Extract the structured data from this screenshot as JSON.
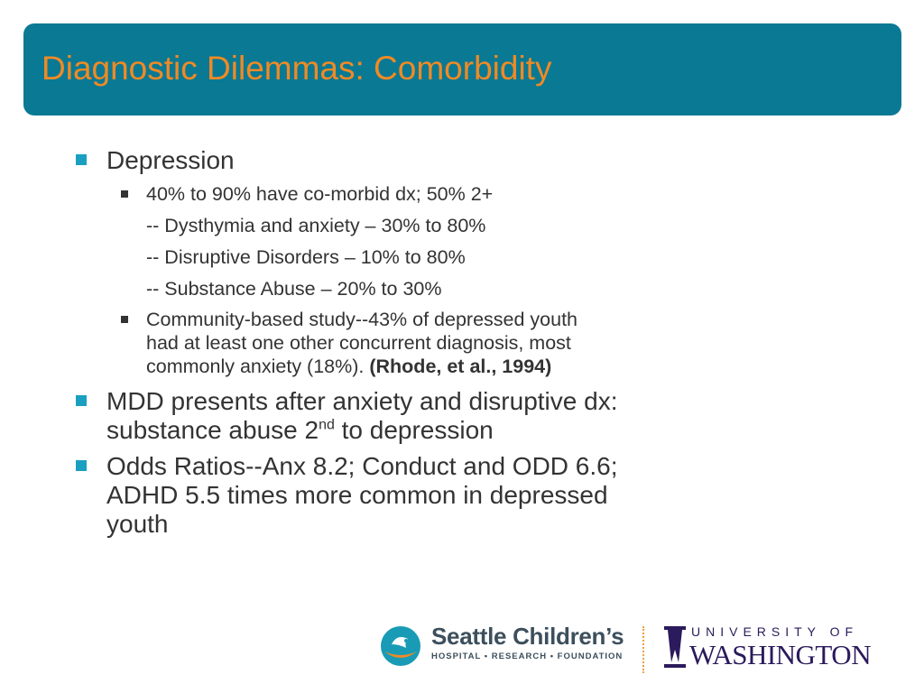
{
  "slide": {
    "title": "Diagnostic Dilemmas: Comorbidity"
  },
  "bullets": {
    "depression": {
      "label": "Depression",
      "sub1": {
        "text": "40% to 90% have co-morbid dx; 50% 2+",
        "lines": [
          "-- Dysthymia and anxiety – 30% to 80%",
          "-- Disruptive Disorders – 10% to 80%",
          "-- Substance Abuse – 20% to 30%"
        ]
      },
      "sub2": {
        "line1": "Community-based study--43% of depressed youth",
        "line2": "had at least one other concurrent diagnosis, most",
        "line3": "commonly anxiety (18%).",
        "citation": "(Rhode, et al., 1994)"
      }
    },
    "mdd": {
      "line1": "MDD presents after anxiety and disruptive dx:",
      "line2_pre": "substance abuse 2",
      "line2_sup": "nd",
      "line2_post": " to depression"
    },
    "odds": {
      "line1": "Odds Ratios--Anx 8.2; Conduct and ODD 6.6;",
      "line2": "ADHD 5.5 times more common in depressed",
      "line3": "youth"
    }
  },
  "footer": {
    "seattle_name": "Seattle Children’s",
    "seattle_sub": "HOSPITAL • RESEARCH • FOUNDATION",
    "uw_top": "UNIVERSITY OF",
    "uw_bottom": "WASHINGTON"
  },
  "colors": {
    "title_bar": "#0a7994",
    "title_text": "#f08a24",
    "bullet_teal": "#1b9fc0",
    "uw_purple": "#2b1a5c"
  }
}
